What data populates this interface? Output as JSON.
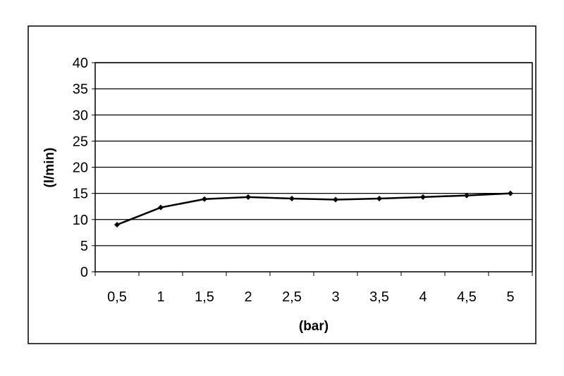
{
  "chart_data": {
    "type": "line",
    "title": "",
    "xlabel": "(bar)",
    "ylabel": "(l/min)",
    "categories": [
      "0,5",
      "1",
      "1,5",
      "2",
      "2,5",
      "3",
      "3,5",
      "4",
      "4,5",
      "5"
    ],
    "values": [
      9.0,
      12.3,
      13.9,
      14.3,
      14.0,
      13.8,
      14.0,
      14.3,
      14.6,
      15.0
    ],
    "ylim": [
      0,
      40
    ],
    "yticks": [
      "0",
      "5",
      "10",
      "15",
      "20",
      "25",
      "30",
      "35",
      "40"
    ],
    "grid": true,
    "line_color": "#000000",
    "marker": "diamond"
  }
}
